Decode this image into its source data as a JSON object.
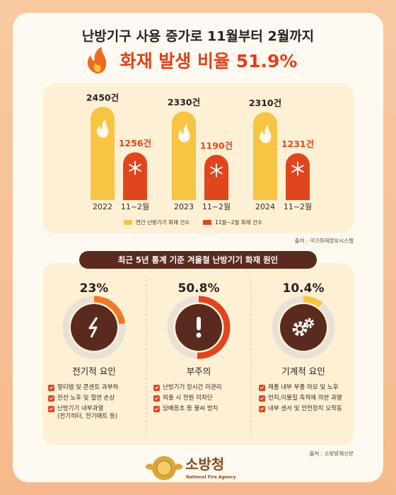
{
  "header": {
    "title": "난방기구 사용 증가로 11월부터 2월까지",
    "headline": "화재 발생 비율 51.9%"
  },
  "chart_data": [
    {
      "type": "bar",
      "categories": [
        "2022",
        "2023",
        "2024"
      ],
      "sub_labels": [
        "11~2월",
        "11~2월",
        "11~2월"
      ],
      "series": [
        {
          "name": "연간 난방기기 화재 건수",
          "color": "#f8c443",
          "values": [
            2450,
            2330,
            2310
          ],
          "value_labels": [
            "2450건",
            "2330건",
            "2310건"
          ]
        },
        {
          "name": "11월~2월 화재 건수",
          "color": "#e0461e",
          "values": [
            1256,
            1190,
            1231
          ],
          "value_labels": [
            "1256건",
            "1190건",
            "1231건"
          ]
        }
      ],
      "source": "출처 : 국가화재정보시스템"
    },
    {
      "type": "gauge",
      "title": "최근 5년 통계 기준 겨울철 난방기기 화재 원인",
      "categories": [
        "전기적 요인",
        "부주의",
        "기계적 요인"
      ],
      "values": [
        23,
        50.8,
        10.4
      ],
      "value_labels": [
        "23%",
        "50.8%",
        "10.4%"
      ],
      "colors": [
        "#ef7a25",
        "#e0461e",
        "#f8c443"
      ],
      "notes": [
        [
          "멀티탭 및 콘센트 과부하",
          "전선 노후 및 절연 손상",
          "난방기기 내부과열\n(전기히터, 전기매트 등)"
        ],
        [
          "난방기기 장시간 미관리",
          "외출 시 전원 미차단",
          "담배꽁초 등 불씨 방치"
        ],
        [
          "제품 내부 부품 마모 및 노후",
          "먼지,이물질 축적에 의한 과열",
          "내부 센서 및 안전장치 오작동"
        ]
      ],
      "source": "출처 : 소방방재신문"
    }
  ],
  "footer": {
    "name": "소방청",
    "english": "National Fire Agency"
  }
}
